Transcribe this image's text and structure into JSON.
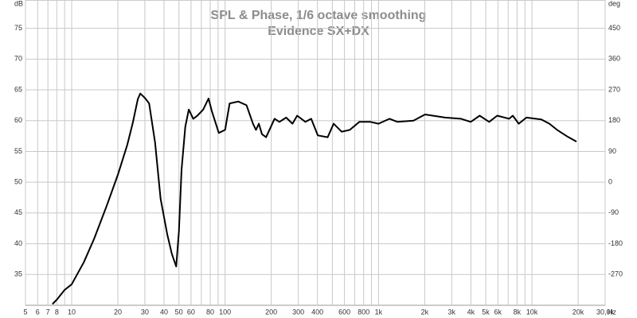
{
  "chart_data": {
    "type": "line",
    "title": "SPL & Phase, 1/6 octave smoothing",
    "subtitle": "Evidence SX+DX",
    "y_unit": "dB",
    "y2_unit": "deg",
    "x_unit": "Hz",
    "log_x": true,
    "grid": true,
    "xlim": [
      5,
      30000
    ],
    "ylim": [
      30,
      79.6
    ],
    "y2lim": [
      -360,
      532.8
    ],
    "xticks": [
      5,
      6,
      7,
      8,
      10,
      20,
      30,
      40,
      50,
      60,
      80,
      100,
      200,
      300,
      400,
      600,
      800,
      {
        "value": 1000,
        "label": "1k"
      },
      {
        "value": 2000,
        "label": "2k"
      },
      {
        "value": 3000,
        "label": "3k"
      },
      {
        "value": 4000,
        "label": "4k"
      },
      {
        "value": 5000,
        "label": "5k"
      },
      {
        "value": 6000,
        "label": "6k"
      },
      {
        "value": 8000,
        "label": "8k"
      },
      {
        "value": 10000,
        "label": "10k"
      },
      {
        "value": 20000,
        "label": "20k"
      },
      {
        "value": 30000,
        "label": "30,0k"
      }
    ],
    "x_minor_ticks": [
      9,
      70,
      90,
      500,
      700,
      900,
      7000,
      9000
    ],
    "yticks": [
      35,
      40,
      45,
      50,
      55,
      60,
      65,
      70,
      75
    ],
    "y2ticks": [
      -270,
      -180,
      -90,
      0,
      90,
      180,
      270,
      360,
      450
    ],
    "series": [
      {
        "name": "SPL",
        "color": "#000000",
        "x": [
          7.5,
          8,
          9,
          10,
          12,
          14,
          17,
          20,
          23,
          25,
          27,
          28,
          30,
          32,
          35,
          38,
          42,
          45,
          48,
          50,
          52,
          55,
          58,
          62,
          66,
          72,
          78,
          82,
          91,
          100,
          107,
          122,
          138,
          152,
          159,
          166,
          174,
          185,
          210,
          226,
          250,
          275,
          295,
          334,
          364,
          402,
          466,
          510,
          575,
          650,
          750,
          886,
          1000,
          1180,
          1330,
          1690,
          2010,
          2260,
          2720,
          3450,
          3990,
          4560,
          5260,
          5940,
          7100,
          7500,
          8200,
          9200,
          11500,
          13000,
          14600,
          16800,
          19500
        ],
        "values": [
          30.2,
          30.9,
          32.5,
          33.4,
          37.0,
          40.8,
          46.3,
          51.2,
          56.0,
          59.6,
          63.5,
          64.4,
          63.7,
          62.8,
          56.4,
          47.3,
          41.5,
          38.3,
          36.3,
          42.0,
          52.0,
          59.0,
          61.8,
          60.3,
          60.8,
          61.8,
          63.6,
          61.5,
          58.0,
          58.5,
          62.8,
          63.1,
          62.5,
          59.5,
          58.5,
          59.5,
          57.8,
          57.3,
          60.3,
          59.8,
          60.5,
          59.5,
          60.8,
          59.8,
          60.3,
          57.6,
          57.3,
          59.5,
          58.2,
          58.5,
          59.8,
          59.8,
          59.5,
          60.3,
          59.8,
          60.0,
          61.0,
          60.8,
          60.5,
          60.3,
          59.8,
          60.8,
          59.8,
          60.8,
          60.3,
          60.8,
          59.5,
          60.5,
          60.2,
          59.5,
          58.5,
          57.5,
          56.6
        ]
      }
    ]
  }
}
